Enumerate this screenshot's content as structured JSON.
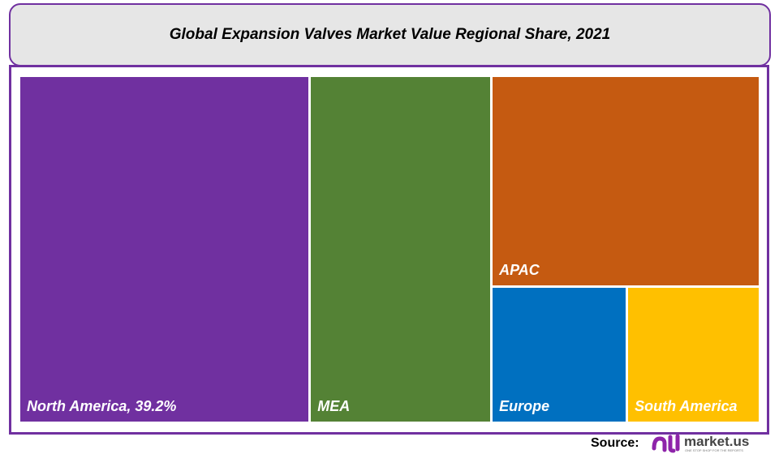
{
  "chart_data": {
    "type": "treemap",
    "title": "Global Expansion Valves Market Value Regional Share, 2021",
    "unit": "%",
    "items": [
      {
        "name": "North America",
        "label": "North America, 39.2%",
        "value": 39.2,
        "color": "#7030a0"
      },
      {
        "name": "MEA",
        "label": "MEA",
        "value": 24.6,
        "color": "#548235"
      },
      {
        "name": "APAC",
        "label": "APAC",
        "value": 22.0,
        "color": "#c55a11"
      },
      {
        "name": "Europe",
        "label": "Europe",
        "value": 7.2,
        "color": "#0070c0"
      },
      {
        "name": "South America",
        "label": "South America",
        "value": 7.0,
        "color": "#ffc000"
      }
    ]
  },
  "footer": {
    "source_label": "Source:",
    "logo_text": "market.us",
    "logo_tagline": "ONE STOP SHOP FOR THE REPORTS"
  }
}
